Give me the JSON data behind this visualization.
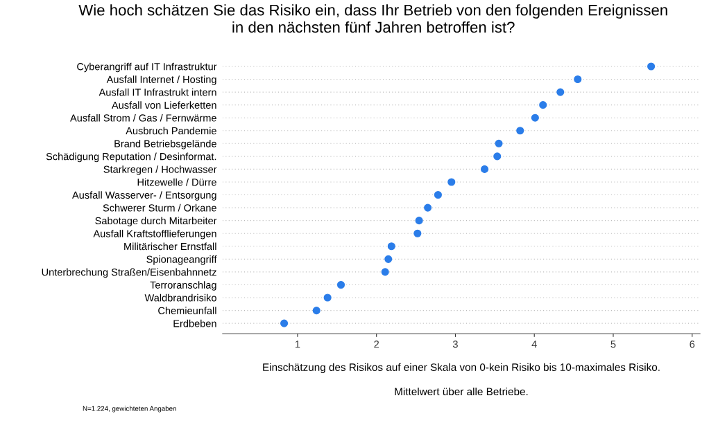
{
  "chart_data": {
    "type": "scatter",
    "title": "Wie hoch schätzen Sie das Risiko ein, dass Ihr Betrieb von den folgenden Ereignissen\nin den nächsten fünf Jahren betroffen ist?",
    "xlabel": "Einschätzung des Risikos auf einer Skala von 0-kein Risiko bis 10-maximales Risiko.\n\nMittelwert über alle Betriebe.",
    "categories": [
      "Cyberangriff auf IT Infrastruktur",
      "Ausfall Internet / Hosting",
      "Ausfall IT Infrastrukt intern",
      "Ausfall von Lieferketten",
      "Ausfall Strom / Gas / Fernwärme",
      "Ausbruch Pandemie",
      "Brand Betriebsgelände",
      "Schädigung Reputation / Desinformat.",
      "Starkregen / Hochwasser",
      "Hitzewelle / Dürre",
      "Ausfall Wasserver- / Entsorgung",
      "Schwerer Sturm / Orkane",
      "Sabotage durch Mitarbeiter",
      "Ausfall Kraftstofflieferungen",
      "Militärischer Ernstfall",
      "Spionageangriff",
      "Unterbrechung Straßen/Eisenbahnnetz",
      "Terroranschlag",
      "Waldbrandrisiko",
      "Chemieunfall",
      "Erdbeben"
    ],
    "orientation": "horizontal",
    "values": [
      5.48,
      4.55,
      4.33,
      4.11,
      4.01,
      3.82,
      3.55,
      3.53,
      3.37,
      2.95,
      2.78,
      2.65,
      2.54,
      2.52,
      2.19,
      2.15,
      2.11,
      1.55,
      1.38,
      1.24,
      0.83
    ],
    "color": "#2b7de9",
    "marker": "circle",
    "grid": "y",
    "xlim": [
      0.05,
      6.1
    ],
    "xticks": [
      1,
      2,
      3,
      4,
      5,
      6
    ],
    "annotations": [
      "N=1.224, gewichteten Angaben"
    ]
  }
}
